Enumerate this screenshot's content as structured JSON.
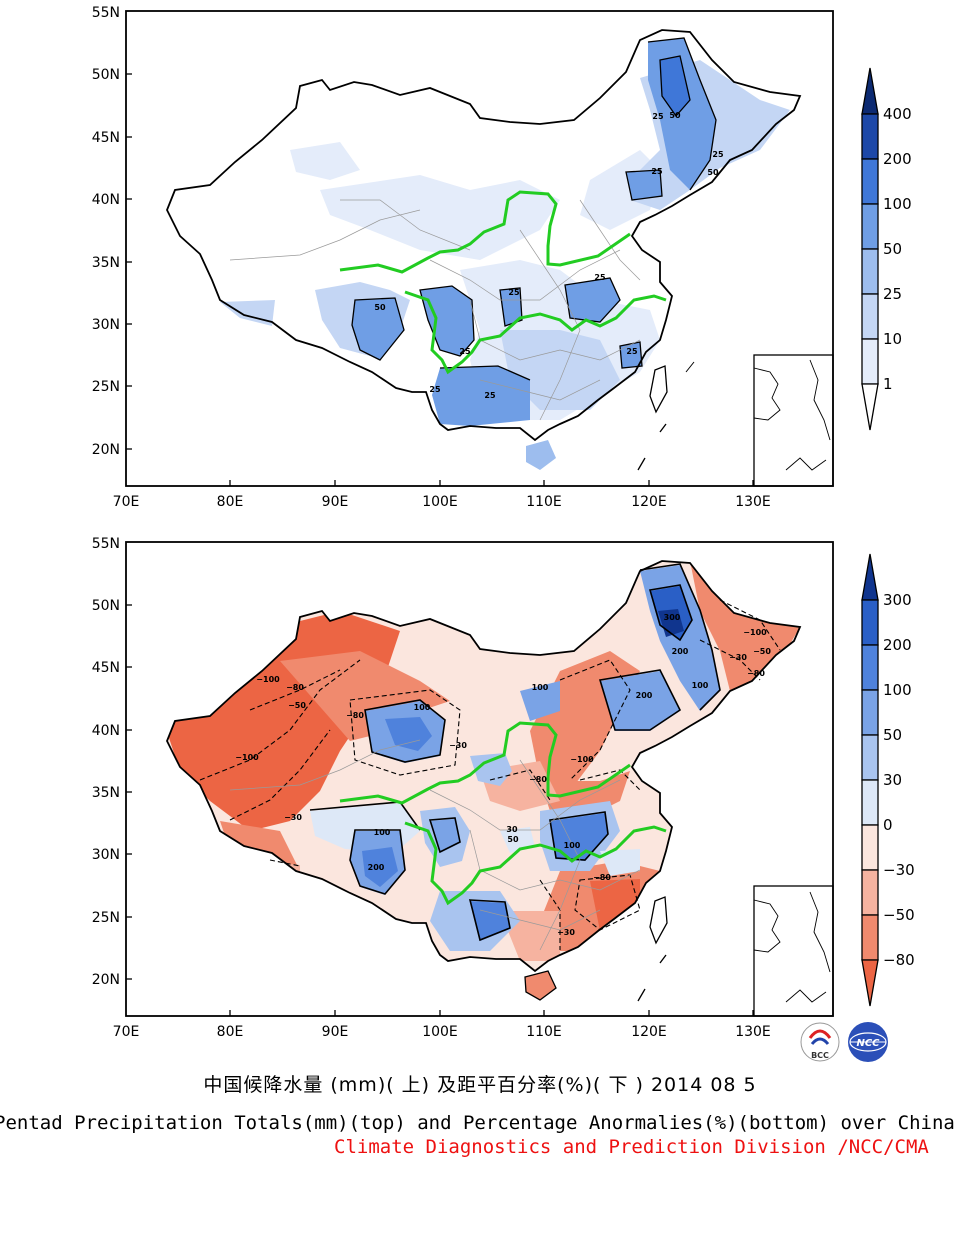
{
  "colors": {
    "top_scale": [
      "#ffffff",
      "#e4ecfa",
      "#c4d6f4",
      "#9dbdee",
      "#6f9ee5",
      "#3f77d8",
      "#1d48a8",
      "#0c2a72"
    ],
    "bottom_pos": [
      "#dde8f7",
      "#a9c4ef",
      "#7aa3e6",
      "#4f82dc",
      "#2a5fc6",
      "#10358e"
    ],
    "bottom_neg": [
      "#fbe6de",
      "#f6b3a0",
      "#f08a6e",
      "#ec6544"
    ],
    "river": "#22cc22",
    "org_text": "#ee1111"
  },
  "top_map": {
    "lat_labels": [
      "55N",
      "50N",
      "45N",
      "40N",
      "35N",
      "30N",
      "25N",
      "20N"
    ],
    "lon_labels": [
      "70E",
      "80E",
      "90E",
      "100E",
      "110E",
      "120E",
      "130E"
    ],
    "colorbar_labels": [
      "400",
      "200",
      "100",
      "50",
      "25",
      "10",
      "1"
    ],
    "contour_labels": [
      "25",
      "50",
      "25",
      "50",
      "25",
      "25",
      "25",
      "50",
      "25",
      "25",
      "25",
      "25"
    ]
  },
  "bottom_map": {
    "lat_labels": [
      "55N",
      "50N",
      "45N",
      "40N",
      "35N",
      "30N",
      "25N",
      "20N"
    ],
    "lon_labels": [
      "70E",
      "80E",
      "90E",
      "100E",
      "110E",
      "120E",
      "130E"
    ],
    "colorbar_labels": [
      "300",
      "200",
      "100",
      "50",
      "30",
      "0",
      "−30",
      "−50",
      "−80"
    ],
    "contour_labels": [
      "300",
      "200",
      "100",
      "−100",
      "−80",
      "−50",
      "−30",
      "100",
      "200",
      "−100",
      "−80",
      "−100",
      "100",
      "−30",
      "−50",
      "−80",
      "100",
      "50",
      "30",
      "−100",
      "−80",
      "100",
      "−80",
      "−30",
      "200",
      "−30"
    ]
  },
  "logos": {
    "left": "BCC",
    "right": "NCC"
  },
  "titles": {
    "chinese": "中国候降水量 (mm)( 上) 及距平百分率(%)( 下 ) 2014 08 5",
    "english": "Pentad Precipitation Totals(mm)(top) and Percentage Anormalies(%)(bottom) over China",
    "org": "Climate Diagnostics and Prediction Division /NCC/CMA"
  }
}
